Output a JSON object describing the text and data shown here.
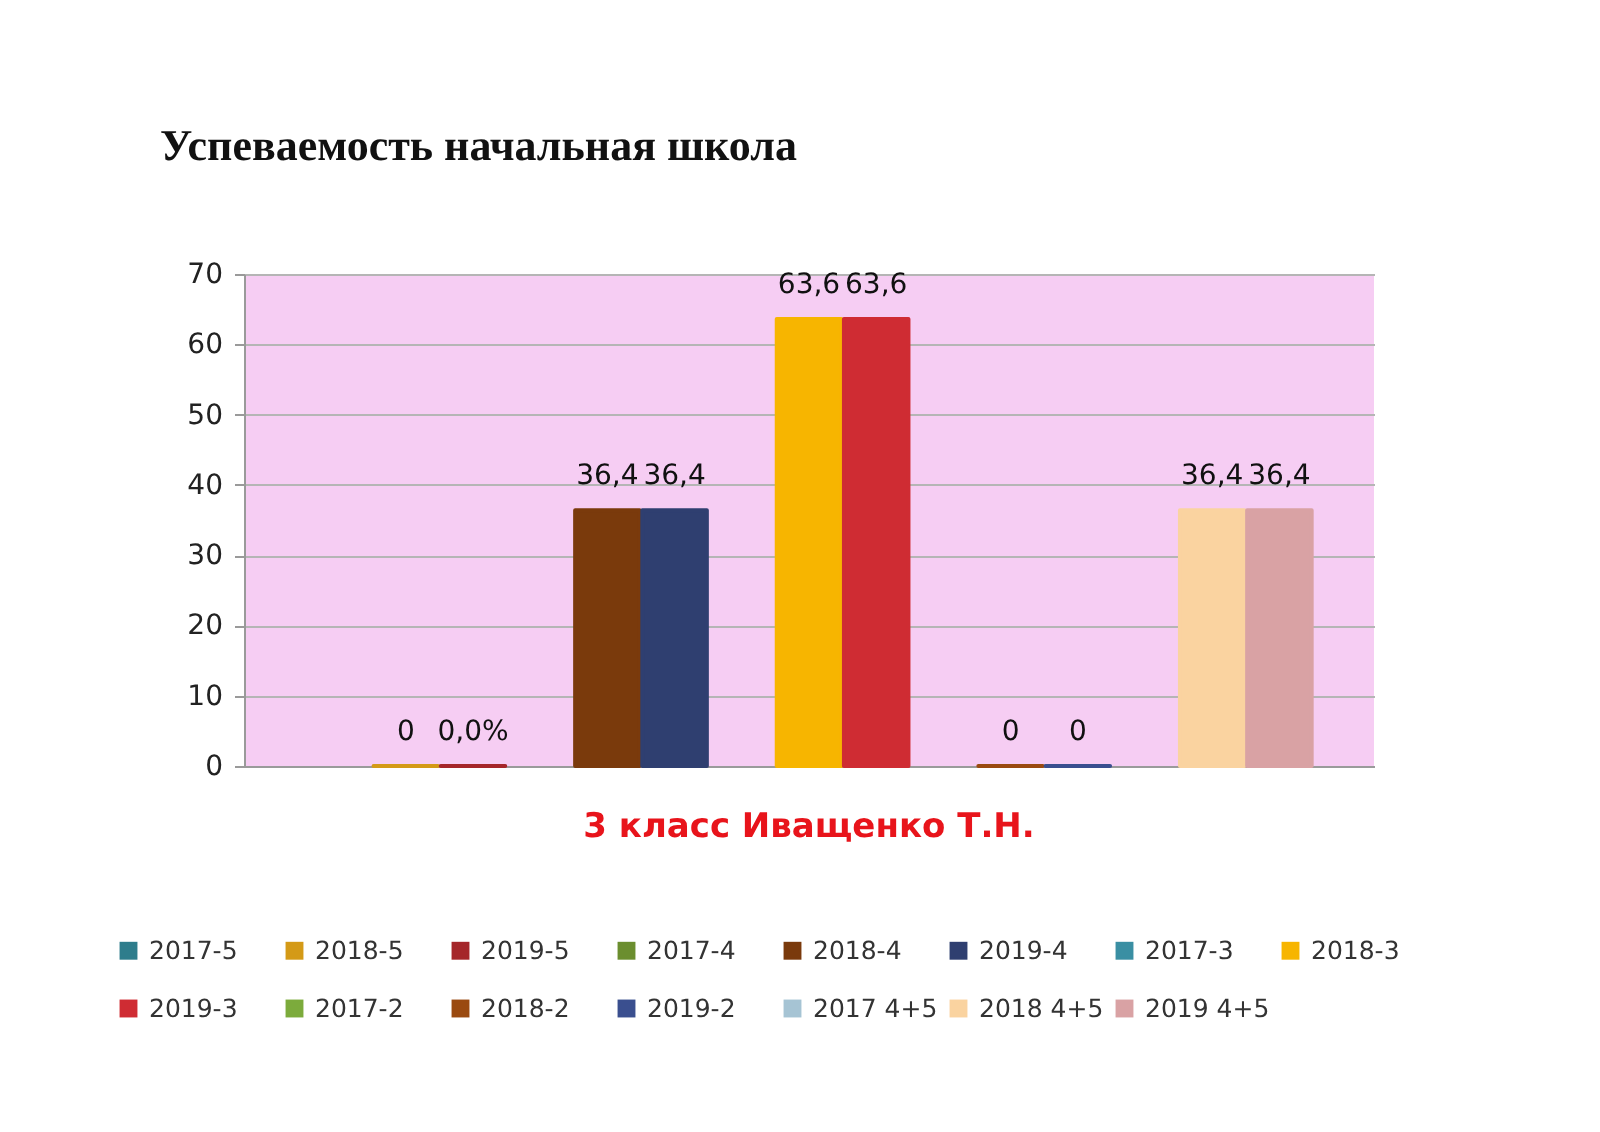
{
  "chart_data": {
    "type": "bar",
    "title": "Успеваемость начальная школа",
    "categories": [
      "3 класс Иващенко Т.Н."
    ],
    "series": [
      {
        "name": "2017-5",
        "color": "#2e7d8c",
        "values": [
          null
        ],
        "value_labels": [
          null
        ]
      },
      {
        "name": "2018-5",
        "color": "#d49a17",
        "values": [
          0
        ],
        "value_labels": [
          "0"
        ]
      },
      {
        "name": "2019-5",
        "color": "#a5262a",
        "values": [
          0
        ],
        "value_labels": [
          "0,0%"
        ]
      },
      {
        "name": "2017-4",
        "color": "#6b8e2f",
        "values": [
          null
        ],
        "value_labels": [
          null
        ]
      },
      {
        "name": "2018-4",
        "color": "#7a3a0c",
        "values": [
          36.4
        ],
        "value_labels": [
          "36,4"
        ]
      },
      {
        "name": "2019-4",
        "color": "#2f3f70",
        "values": [
          36.4
        ],
        "value_labels": [
          "36,4"
        ]
      },
      {
        "name": "2017-3",
        "color": "#3a8fa3",
        "values": [
          null
        ],
        "value_labels": [
          null
        ]
      },
      {
        "name": "2018-3",
        "color": "#f7b500",
        "values": [
          63.6
        ],
        "value_labels": [
          "63,6"
        ]
      },
      {
        "name": "2019-3",
        "color": "#cf2c33",
        "values": [
          63.6
        ],
        "value_labels": [
          "63,6"
        ]
      },
      {
        "name": "2017-2",
        "color": "#7cab3c",
        "values": [
          null
        ],
        "value_labels": [
          null
        ]
      },
      {
        "name": "2018-2",
        "color": "#9a4a10",
        "values": [
          0
        ],
        "value_labels": [
          "0"
        ]
      },
      {
        "name": "2019-2",
        "color": "#3a4f8f",
        "values": [
          0
        ],
        "value_labels": [
          "0"
        ]
      },
      {
        "name": "2017 4+5",
        "color": "#a6c4d4",
        "values": [
          null
        ],
        "value_labels": [
          null
        ]
      },
      {
        "name": "2018 4+5",
        "color": "#fad3a0",
        "values": [
          36.4
        ],
        "value_labels": [
          "36,4"
        ]
      },
      {
        "name": "2019 4+5",
        "color": "#d9a2a4",
        "values": [
          36.4
        ],
        "value_labels": [
          "36,4"
        ]
      }
    ],
    "ylim": [
      0,
      70
    ],
    "yticks": [
      0,
      10,
      20,
      30,
      40,
      50,
      60,
      70
    ],
    "grid": "y",
    "legend": "bottom"
  }
}
